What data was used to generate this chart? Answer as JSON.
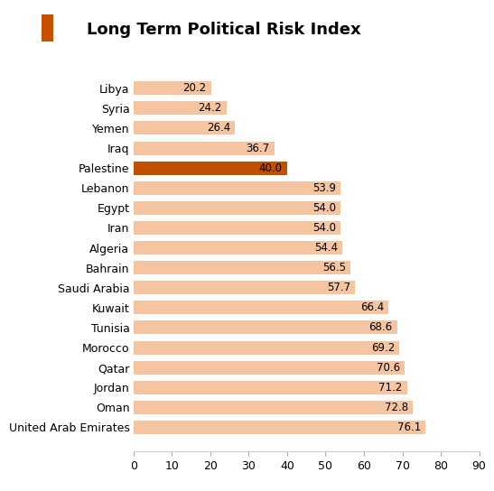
{
  "title": "Long Term Political Risk Index",
  "categories": [
    "United Arab Emirates",
    "Oman",
    "Jordan",
    "Qatar",
    "Morocco",
    "Tunisia",
    "Kuwait",
    "Saudi Arabia",
    "Bahrain",
    "Algeria",
    "Iran",
    "Egypt",
    "Lebanon",
    "Palestine",
    "Iraq",
    "Yemen",
    "Syria",
    "Libya"
  ],
  "values": [
    76.1,
    72.8,
    71.2,
    70.6,
    69.2,
    68.6,
    66.4,
    57.7,
    56.5,
    54.4,
    54.0,
    54.0,
    53.9,
    40.0,
    36.7,
    26.4,
    24.2,
    20.2
  ],
  "highlight": "Palestine",
  "bar_color_light": "#F5C4A0",
  "bar_color_highlight": "#C05000",
  "title_icon_color": "#C85000",
  "xlim": [
    0,
    90
  ],
  "xticks": [
    0,
    10,
    20,
    30,
    40,
    50,
    60,
    70,
    80,
    90
  ],
  "background_color": "#FFFFFF",
  "label_fontsize": 9,
  "title_fontsize": 13,
  "value_fontsize": 8.5
}
